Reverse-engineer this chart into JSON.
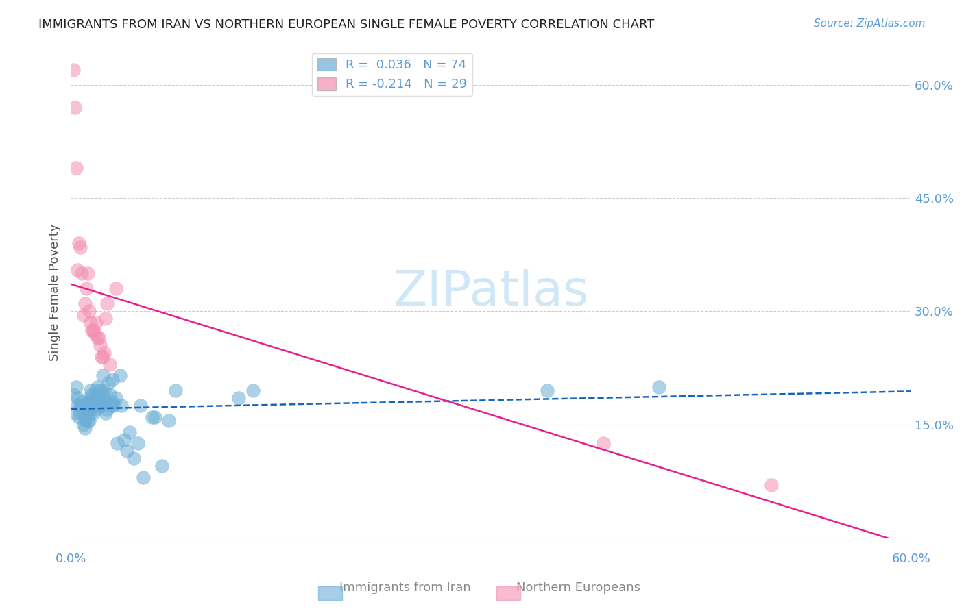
{
  "title": "IMMIGRANTS FROM IRAN VS NORTHERN EUROPEAN SINGLE FEMALE POVERTY CORRELATION CHART",
  "source": "Source: ZipAtlas.com",
  "ylabel": "Single Female Poverty",
  "xmin": 0.0,
  "xmax": 0.6,
  "ymin": 0.0,
  "ymax": 0.65,
  "legend_r1": "R =  0.036",
  "legend_n1": "N = 74",
  "legend_r2": "R = -0.214",
  "legend_n2": "N = 29",
  "color_blue": "#6baed6",
  "color_pink": "#f48fb1",
  "color_trendline_blue": "#1565c0",
  "color_trendline_pink": "#e91e8c",
  "color_axis_labels": "#5b9bd5",
  "watermark_color": "#d0e8f5",
  "iran_x": [
    0.002,
    0.003,
    0.004,
    0.005,
    0.005,
    0.006,
    0.007,
    0.007,
    0.008,
    0.008,
    0.009,
    0.009,
    0.01,
    0.01,
    0.01,
    0.011,
    0.011,
    0.012,
    0.012,
    0.013,
    0.013,
    0.013,
    0.014,
    0.014,
    0.015,
    0.015,
    0.015,
    0.016,
    0.016,
    0.017,
    0.017,
    0.018,
    0.018,
    0.018,
    0.019,
    0.019,
    0.02,
    0.02,
    0.021,
    0.021,
    0.022,
    0.022,
    0.023,
    0.023,
    0.024,
    0.025,
    0.025,
    0.026,
    0.027,
    0.028,
    0.029,
    0.03,
    0.03,
    0.031,
    0.032,
    0.033,
    0.035,
    0.036,
    0.038,
    0.04,
    0.042,
    0.045,
    0.048,
    0.05,
    0.052,
    0.058,
    0.06,
    0.065,
    0.07,
    0.075,
    0.12,
    0.13,
    0.34,
    0.42
  ],
  "iran_y": [
    0.19,
    0.165,
    0.2,
    0.175,
    0.185,
    0.16,
    0.175,
    0.165,
    0.175,
    0.18,
    0.17,
    0.15,
    0.145,
    0.16,
    0.155,
    0.175,
    0.18,
    0.175,
    0.155,
    0.17,
    0.165,
    0.155,
    0.195,
    0.185,
    0.175,
    0.18,
    0.19,
    0.175,
    0.165,
    0.18,
    0.185,
    0.17,
    0.195,
    0.175,
    0.185,
    0.2,
    0.175,
    0.18,
    0.195,
    0.18,
    0.185,
    0.175,
    0.215,
    0.19,
    0.195,
    0.165,
    0.18,
    0.17,
    0.205,
    0.19,
    0.175,
    0.18,
    0.21,
    0.175,
    0.185,
    0.125,
    0.215,
    0.175,
    0.13,
    0.115,
    0.14,
    0.105,
    0.125,
    0.175,
    0.08,
    0.16,
    0.16,
    0.095,
    0.155,
    0.195,
    0.185,
    0.195,
    0.195,
    0.2
  ],
  "ne_x": [
    0.002,
    0.003,
    0.004,
    0.005,
    0.006,
    0.007,
    0.008,
    0.009,
    0.01,
    0.011,
    0.012,
    0.013,
    0.014,
    0.015,
    0.016,
    0.017,
    0.018,
    0.019,
    0.02,
    0.021,
    0.022,
    0.023,
    0.024,
    0.025,
    0.026,
    0.028,
    0.032,
    0.38,
    0.5
  ],
  "ne_y": [
    0.62,
    0.57,
    0.49,
    0.355,
    0.39,
    0.385,
    0.35,
    0.295,
    0.31,
    0.33,
    0.35,
    0.3,
    0.285,
    0.275,
    0.275,
    0.27,
    0.285,
    0.265,
    0.265,
    0.255,
    0.24,
    0.24,
    0.245,
    0.29,
    0.31,
    0.23,
    0.33,
    0.125,
    0.07
  ]
}
